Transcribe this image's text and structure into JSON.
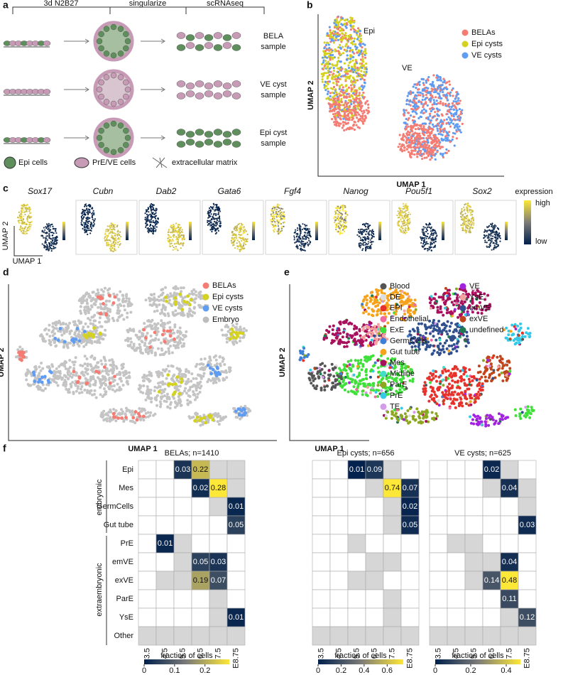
{
  "panel_a": {
    "label": "a",
    "stages": [
      "3d N2B27",
      "singularize",
      "scRNAseq"
    ],
    "samples": [
      [
        "BELA",
        "sample"
      ],
      [
        "VE cyst",
        "sample"
      ],
      [
        "Epi cyst",
        "sample"
      ]
    ],
    "legend": [
      "Epi cells",
      "PrE/VE cells",
      "extracellular matrix"
    ]
  },
  "panel_b": {
    "label": "b",
    "x_label": "UMAP 1",
    "y_label": "UMAP 2",
    "annotations": [
      "Epi",
      "VE"
    ],
    "legend": [
      {
        "name": "BELAs",
        "color": "#f47c72"
      },
      {
        "name": "Epi cysts",
        "color": "#d4d21e"
      },
      {
        "name": "VE cysts",
        "color": "#5f9cf2"
      }
    ]
  },
  "panel_c": {
    "label": "c",
    "genes": [
      "Sox17",
      "Cubn",
      "Dab2",
      "Gata6",
      "Fgf4",
      "Nanog",
      "Pou5f1",
      "Sox2"
    ],
    "x_label": "UMAP 1",
    "y_label": "UMAP 2",
    "colorbar": {
      "title": "expression",
      "high": "high",
      "low": "low"
    }
  },
  "panel_d": {
    "label": "d",
    "x_label": "UMAP 1",
    "y_label": "UMAP 2",
    "legend": [
      {
        "name": "BELAs",
        "color": "#f47c72"
      },
      {
        "name": "Epi cysts",
        "color": "#d4d21e"
      },
      {
        "name": "VE cysts",
        "color": "#5f9cf2"
      },
      {
        "name": "Embryo",
        "color": "#bdbdbd"
      }
    ]
  },
  "panel_e": {
    "label": "e",
    "x_label": "UMAP 1",
    "y_label": "UMAP 2",
    "legend": [
      {
        "name": "Blood",
        "color": "#555555"
      },
      {
        "name": "DE",
        "color": "#dddddd"
      },
      {
        "name": "EPI",
        "color": "#e8312a"
      },
      {
        "name": "Endothelial",
        "color": "#f06aa0"
      },
      {
        "name": "ExE",
        "color": "#3fe03a"
      },
      {
        "name": "GermCells",
        "color": "#3b7fd8"
      },
      {
        "name": "Gut tube",
        "color": "#f7a21b"
      },
      {
        "name": "Mes",
        "color": "#a8105e"
      },
      {
        "name": "Midline",
        "color": "#40e0c8"
      },
      {
        "name": "ParE",
        "color": "#8da620"
      },
      {
        "name": "PrE",
        "color": "#35c9e8"
      },
      {
        "name": "TE",
        "color": "#d49be8"
      },
      {
        "name": "VE",
        "color": "#a322e0"
      },
      {
        "name": "YsE",
        "color": "#f5a3a0"
      },
      {
        "name": "emVE",
        "color": "#2f4f8f"
      },
      {
        "name": "exVE",
        "color": "#c0451b"
      },
      {
        "name": "undefined",
        "color": "#1f7a50"
      }
    ]
  },
  "panel_f": {
    "label": "f",
    "groups": [
      "embryonic",
      "extraembryonic"
    ],
    "rows": [
      "Epi",
      "Mes",
      "GermCells",
      "Gut tube",
      "PrE",
      "emVE",
      "exVE",
      "ParE",
      "YsE",
      "Other"
    ],
    "columns": [
      "E3.5",
      "E4.5",
      "E5.5",
      "E6.5",
      "E7.5",
      "E8.75"
    ],
    "colorbar_title": "fraction of cells",
    "heatmaps": [
      {
        "title": "BELAs; n=1410",
        "clim": [
          0,
          0.28
        ],
        "ticks": [
          0,
          0.1,
          0.2
        ],
        "values": [
          [
            null,
            null,
            0.03,
            0.22,
            null,
            null
          ],
          [
            null,
            null,
            null,
            0.02,
            0.28,
            null
          ],
          [
            null,
            null,
            null,
            null,
            null,
            0.01
          ],
          [
            null,
            null,
            null,
            null,
            null,
            0.05
          ],
          [
            null,
            0.01,
            null,
            null,
            null,
            null
          ],
          [
            null,
            null,
            null,
            0.05,
            0.03,
            null
          ],
          [
            null,
            null,
            null,
            0.19,
            0.07,
            null
          ],
          [
            null,
            null,
            null,
            null,
            null,
            null
          ],
          [
            null,
            null,
            null,
            null,
            null,
            0.01
          ],
          [
            null,
            null,
            null,
            null,
            null,
            null
          ]
        ]
      },
      {
        "title": "Epi cysts; n=656",
        "clim": [
          0,
          0.74
        ],
        "ticks": [
          0,
          0.2,
          0.4,
          0.6
        ],
        "values": [
          [
            null,
            null,
            0.01,
            0.09,
            null,
            null
          ],
          [
            null,
            null,
            null,
            null,
            0.74,
            0.07
          ],
          [
            null,
            null,
            null,
            null,
            null,
            0.02
          ],
          [
            null,
            null,
            null,
            null,
            null,
            0.05
          ],
          [
            null,
            null,
            null,
            null,
            null,
            null
          ],
          [
            null,
            null,
            null,
            null,
            null,
            null
          ],
          [
            null,
            null,
            null,
            null,
            null,
            null
          ],
          [
            null,
            null,
            null,
            null,
            null,
            null
          ],
          [
            null,
            null,
            null,
            null,
            null,
            null
          ],
          [
            null,
            null,
            null,
            null,
            null,
            null
          ]
        ]
      },
      {
        "title": "VE cysts; n=625",
        "clim": [
          0,
          0.48
        ],
        "ticks": [
          0,
          0.2,
          0.4
        ],
        "values": [
          [
            null,
            null,
            null,
            0.02,
            null,
            null
          ],
          [
            null,
            null,
            null,
            null,
            0.04,
            null
          ],
          [
            null,
            null,
            null,
            null,
            null,
            null
          ],
          [
            null,
            null,
            null,
            null,
            null,
            0.03
          ],
          [
            null,
            null,
            null,
            null,
            null,
            null
          ],
          [
            null,
            null,
            null,
            null,
            0.04,
            null
          ],
          [
            null,
            null,
            null,
            0.14,
            0.48,
            null
          ],
          [
            null,
            null,
            null,
            null,
            0.11,
            null
          ],
          [
            null,
            null,
            null,
            null,
            null,
            0.12
          ],
          [
            null,
            null,
            null,
            null,
            null,
            null
          ]
        ]
      }
    ]
  }
}
